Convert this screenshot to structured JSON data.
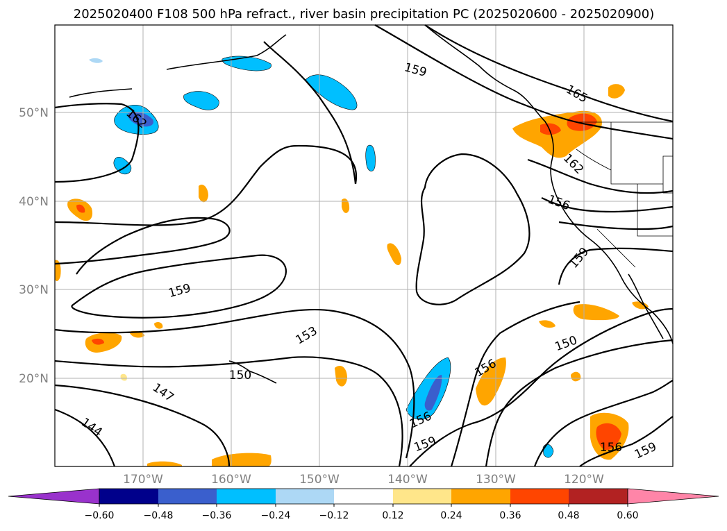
{
  "title": "2025020400 F108 500 hPa refract., river basin precipitation PC (2025020600 - 2025020900)",
  "lat_labels": [
    "50°N",
    "40°N",
    "30°N",
    "20°N"
  ],
  "lon_labels": [
    "170°W",
    "160°W",
    "150°W",
    "140°W",
    "130°W",
    "120°W"
  ],
  "contour_labels": [
    "162",
    "159",
    "165",
    "162",
    "156",
    "159",
    "159",
    "153",
    "150",
    "150",
    "147",
    "144",
    "156",
    "156",
    "159",
    "156",
    "159"
  ],
  "colorbar": {
    "tick_labels": [
      "−0.60",
      "−0.48",
      "−0.36",
      "−0.24",
      "−0.12",
      "0.12",
      "0.24",
      "0.36",
      "0.48",
      "0.60"
    ],
    "colors": [
      "#9932cc",
      "#00008b",
      "#3a5fcd",
      "#00bfff",
      "#add8f5",
      "#ffffff",
      "#ffe68a",
      "#ffa500",
      "#ff4500",
      "#b22222",
      "#ff85a8"
    ]
  }
}
